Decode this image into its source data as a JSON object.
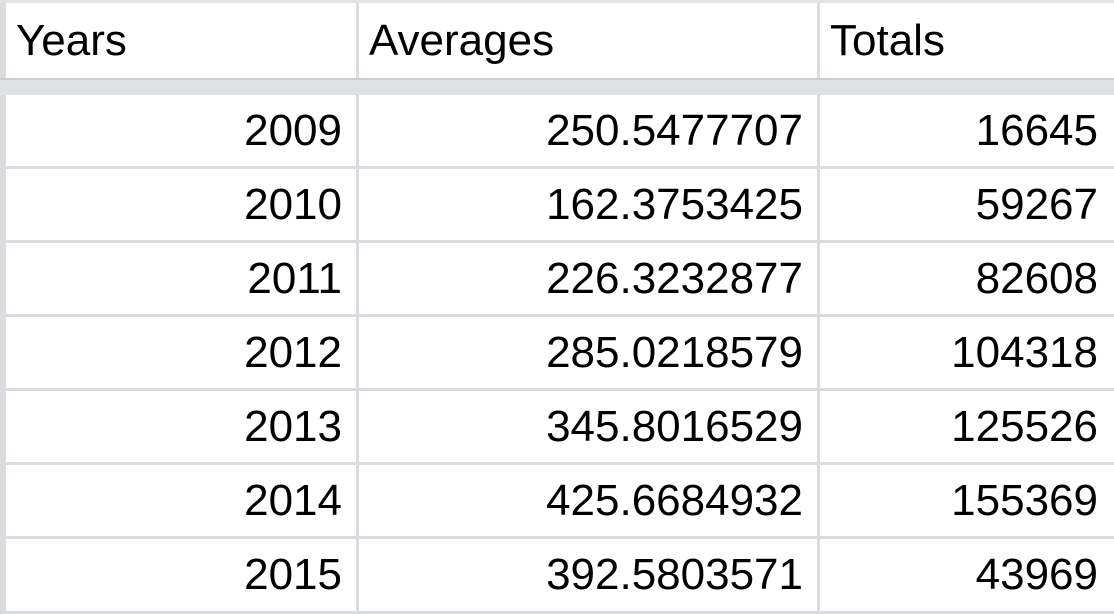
{
  "table": {
    "headers": [
      "Years",
      "Averages",
      "Totals"
    ],
    "rows": [
      {
        "year": "2009",
        "average": "250.5477707",
        "total": "16645"
      },
      {
        "year": "2010",
        "average": "162.3753425",
        "total": "59267"
      },
      {
        "year": "2011",
        "average": "226.3232877",
        "total": "82608"
      },
      {
        "year": "2012",
        "average": "285.0218579",
        "total": "104318"
      },
      {
        "year": "2013",
        "average": "345.8016529",
        "total": "125526"
      },
      {
        "year": "2014",
        "average": "425.6684932",
        "total": "155369"
      },
      {
        "year": "2015",
        "average": "392.5803571",
        "total": "43969"
      }
    ]
  }
}
